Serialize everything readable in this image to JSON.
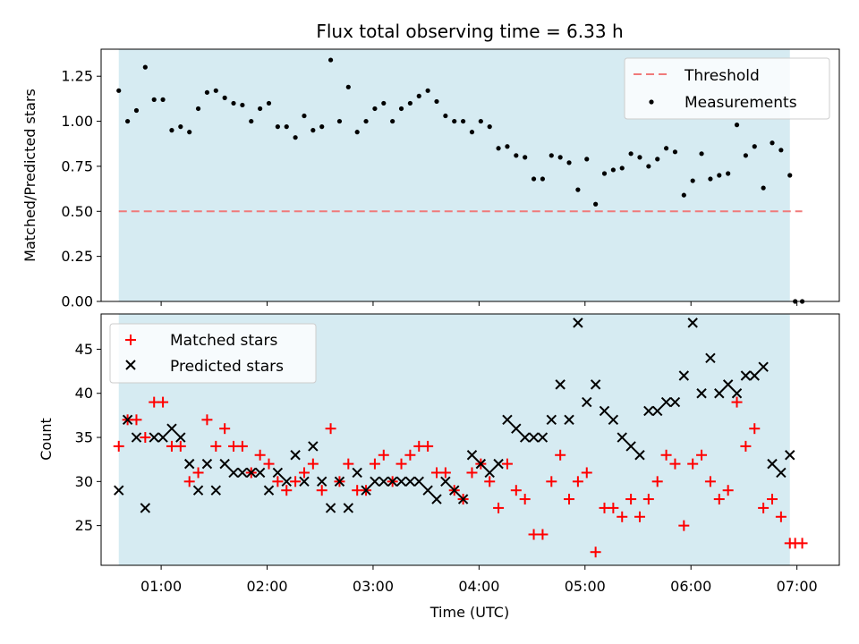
{
  "chart_data": [
    {
      "type": "scatter",
      "title": "Flux total observing time = 6.33 h",
      "ylabel": "Matched/Predicted stars",
      "xlabel": "",
      "xlim": [
        "00:26",
        "07:24"
      ],
      "ylim": [
        0,
        1.4
      ],
      "yticks": [
        0.0,
        0.25,
        0.5,
        0.75,
        1.0,
        1.25
      ],
      "ytick_labels": [
        "0.00",
        "0.25",
        "0.50",
        "0.75",
        "1.00",
        "1.25"
      ],
      "xticks": [
        "01:00",
        "02:00",
        "03:00",
        "04:00",
        "05:00",
        "06:00",
        "07:00"
      ],
      "observing_span": [
        "00:36",
        "06:56"
      ],
      "legend": {
        "position": "top-right",
        "entries": [
          "Threshold",
          "Measurements"
        ]
      },
      "threshold": {
        "name": "Threshold",
        "y": 0.5,
        "x": [
          "00:36",
          "07:03"
        ],
        "color": "#f07a7a",
        "style": "dashed"
      },
      "series": [
        {
          "name": "Measurements",
          "color": "#000000",
          "marker": "dot",
          "x": [
            "00:36",
            "00:41",
            "00:46",
            "00:51",
            "00:56",
            "01:01",
            "01:06",
            "01:11",
            "01:16",
            "01:21",
            "01:26",
            "01:31",
            "01:36",
            "01:41",
            "01:46",
            "01:51",
            "01:56",
            "02:01",
            "02:06",
            "02:11",
            "02:16",
            "02:21",
            "02:26",
            "02:31",
            "02:36",
            "02:41",
            "02:46",
            "02:51",
            "02:56",
            "03:01",
            "03:06",
            "03:11",
            "03:16",
            "03:21",
            "03:26",
            "03:31",
            "03:36",
            "03:41",
            "03:46",
            "03:51",
            "03:56",
            "04:01",
            "04:06",
            "04:11",
            "04:16",
            "04:21",
            "04:26",
            "04:31",
            "04:36",
            "04:41",
            "04:46",
            "04:51",
            "04:56",
            "05:01",
            "05:06",
            "05:11",
            "05:16",
            "05:21",
            "05:26",
            "05:31",
            "05:36",
            "05:41",
            "05:46",
            "05:51",
            "05:56",
            "06:01",
            "06:06",
            "06:11",
            "06:16",
            "06:21",
            "06:26",
            "06:31",
            "06:36",
            "06:41",
            "06:46",
            "06:51",
            "06:56",
            "06:59",
            "07:03"
          ],
          "y": [
            1.17,
            1.0,
            1.06,
            1.3,
            1.12,
            1.12,
            0.95,
            0.97,
            0.94,
            1.07,
            1.16,
            1.17,
            1.13,
            1.1,
            1.09,
            1.0,
            1.07,
            1.1,
            0.97,
            0.97,
            0.91,
            1.03,
            0.95,
            0.97,
            1.34,
            1.0,
            1.19,
            0.94,
            1.0,
            1.07,
            1.1,
            1.0,
            1.07,
            1.1,
            1.14,
            1.17,
            1.11,
            1.03,
            1.0,
            1.0,
            0.94,
            1.0,
            0.97,
            0.85,
            0.86,
            0.81,
            0.8,
            0.68,
            0.68,
            0.81,
            0.8,
            0.77,
            0.62,
            0.79,
            0.54,
            0.71,
            0.73,
            0.74,
            0.82,
            0.8,
            0.75,
            0.79,
            0.85,
            0.83,
            0.59,
            0.67,
            0.82,
            0.68,
            0.7,
            0.71,
            0.98,
            0.81,
            0.86,
            0.63,
            0.88,
            0.84,
            0.7,
            0.0,
            0.0
          ]
        }
      ]
    },
    {
      "type": "scatter",
      "title": "",
      "ylabel": "Count",
      "xlabel": "Time (UTC)",
      "xlim": [
        "00:26",
        "07:24"
      ],
      "ylim": [
        20.5,
        49
      ],
      "yticks": [
        25,
        30,
        35,
        40,
        45
      ],
      "ytick_labels": [
        "25",
        "30",
        "35",
        "40",
        "45"
      ],
      "xticks": [
        "01:00",
        "02:00",
        "03:00",
        "04:00",
        "05:00",
        "06:00",
        "07:00"
      ],
      "observing_span": [
        "00:36",
        "06:56"
      ],
      "legend": {
        "position": "top-left",
        "entries": [
          "Matched stars",
          "Predicted stars"
        ]
      },
      "series": [
        {
          "name": "Matched stars",
          "color": "#ff0000",
          "marker": "plus",
          "x": [
            "00:36",
            "00:41",
            "00:46",
            "00:51",
            "00:56",
            "01:01",
            "01:06",
            "01:11",
            "01:16",
            "01:21",
            "01:26",
            "01:31",
            "01:36",
            "01:41",
            "01:46",
            "01:51",
            "01:56",
            "02:01",
            "02:06",
            "02:11",
            "02:16",
            "02:21",
            "02:26",
            "02:31",
            "02:36",
            "02:41",
            "02:46",
            "02:51",
            "02:56",
            "03:01",
            "03:06",
            "03:11",
            "03:16",
            "03:21",
            "03:26",
            "03:31",
            "03:36",
            "03:41",
            "03:46",
            "03:51",
            "03:56",
            "04:01",
            "04:06",
            "04:11",
            "04:16",
            "04:21",
            "04:26",
            "04:31",
            "04:36",
            "04:41",
            "04:46",
            "04:51",
            "04:56",
            "05:01",
            "05:06",
            "05:11",
            "05:16",
            "05:21",
            "05:26",
            "05:31",
            "05:36",
            "05:41",
            "05:46",
            "05:51",
            "05:56",
            "06:01",
            "06:06",
            "06:11",
            "06:16",
            "06:21",
            "06:26",
            "06:31",
            "06:36",
            "06:41",
            "06:46",
            "06:51",
            "06:56",
            "06:59",
            "07:03"
          ],
          "y": [
            34,
            37,
            37,
            35,
            39,
            39,
            34,
            34,
            30,
            31,
            37,
            34,
            36,
            34,
            34,
            31,
            33,
            32,
            30,
            29,
            30,
            31,
            32,
            29,
            36,
            30,
            32,
            29,
            29,
            32,
            33,
            30,
            32,
            33,
            34,
            34,
            31,
            31,
            29,
            28,
            31,
            32,
            30,
            27,
            32,
            29,
            28,
            24,
            24,
            30,
            33,
            28,
            30,
            31,
            22,
            27,
            27,
            26,
            28,
            26,
            28,
            30,
            33,
            32,
            25,
            32,
            33,
            30,
            28,
            29,
            39,
            34,
            36,
            27,
            28,
            26,
            23,
            23,
            23
          ]
        },
        {
          "name": "Predicted stars",
          "color": "#000000",
          "marker": "x",
          "x": [
            "00:36",
            "00:41",
            "00:46",
            "00:51",
            "00:56",
            "01:01",
            "01:06",
            "01:11",
            "01:16",
            "01:21",
            "01:26",
            "01:31",
            "01:36",
            "01:41",
            "01:46",
            "01:51",
            "01:56",
            "02:01",
            "02:06",
            "02:11",
            "02:16",
            "02:21",
            "02:26",
            "02:31",
            "02:36",
            "02:41",
            "02:46",
            "02:51",
            "02:56",
            "03:01",
            "03:06",
            "03:11",
            "03:16",
            "03:21",
            "03:26",
            "03:31",
            "03:36",
            "03:41",
            "03:46",
            "03:51",
            "03:56",
            "04:01",
            "04:06",
            "04:11",
            "04:16",
            "04:21",
            "04:26",
            "04:31",
            "04:36",
            "04:41",
            "04:46",
            "04:51",
            "04:56",
            "05:01",
            "05:06",
            "05:11",
            "05:16",
            "05:21",
            "05:26",
            "05:31",
            "05:36",
            "05:41",
            "05:46",
            "05:51",
            "05:56",
            "06:01",
            "06:06",
            "06:11",
            "06:16",
            "06:21",
            "06:26",
            "06:31",
            "06:36",
            "06:41",
            "06:46",
            "06:51",
            "06:56"
          ],
          "y": [
            29,
            37,
            35,
            27,
            35,
            35,
            36,
            35,
            32,
            29,
            32,
            29,
            32,
            31,
            31,
            31,
            31,
            29,
            31,
            30,
            33,
            30,
            34,
            30,
            27,
            30,
            27,
            31,
            29,
            30,
            30,
            30,
            30,
            30,
            30,
            29,
            28,
            30,
            29,
            28,
            33,
            32,
            31,
            32,
            37,
            36,
            35,
            35,
            35,
            37,
            41,
            37,
            48,
            39,
            41,
            38,
            37,
            35,
            34,
            33,
            38,
            38,
            39,
            39,
            42,
            48,
            40,
            44,
            40,
            41,
            40,
            42,
            42,
            43,
            32,
            31,
            33
          ]
        }
      ]
    }
  ]
}
